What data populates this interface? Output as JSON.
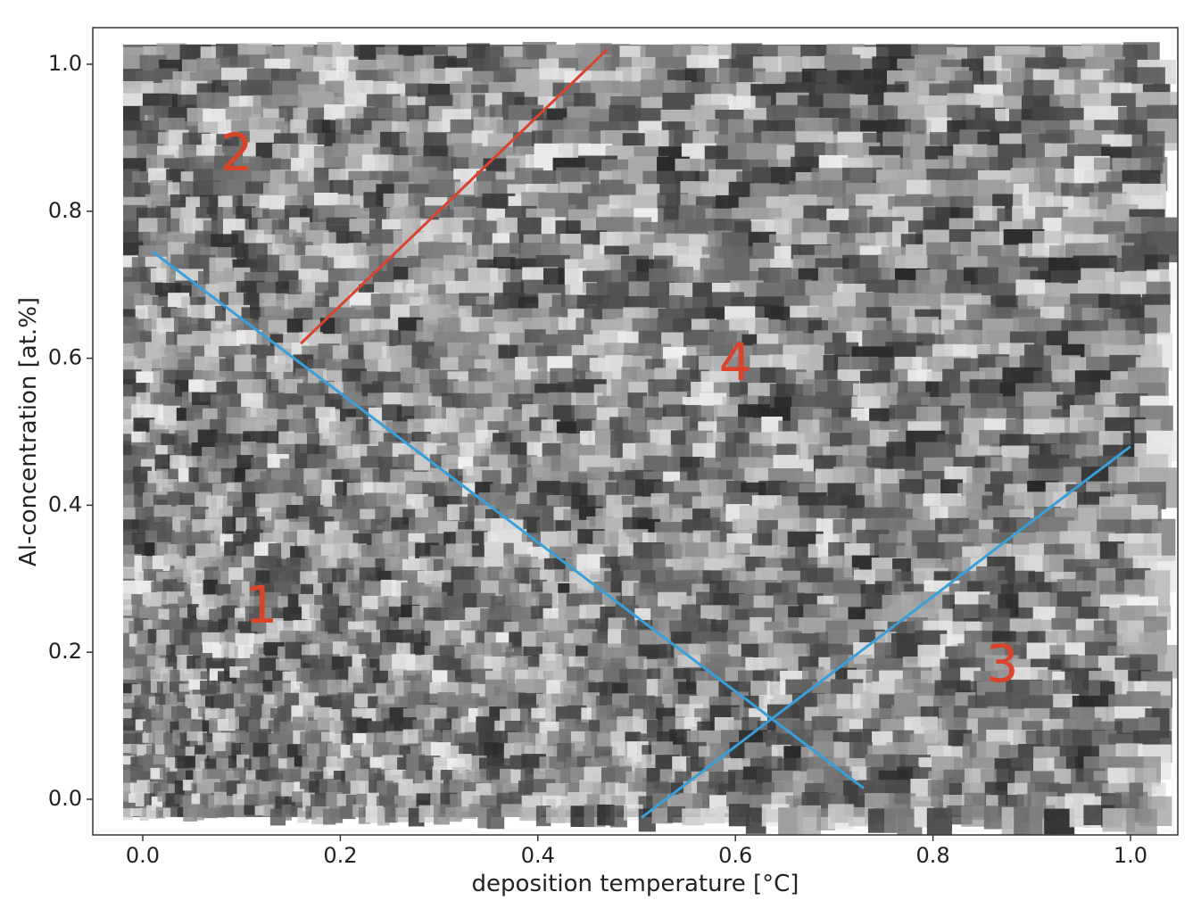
{
  "chart_data": {
    "type": "scatter",
    "title": "",
    "xlabel": "deposition temperature [°C]",
    "ylabel": "Al-concentration [at.%]",
    "xlim": [
      -0.05,
      1.05
    ],
    "ylim": [
      -0.05,
      1.05
    ],
    "xticks": [
      "0.0",
      "0.2",
      "0.4",
      "0.6",
      "0.8",
      "1.0"
    ],
    "yticks": [
      "0.0",
      "0.2",
      "0.4",
      "0.6",
      "0.8",
      "1.0"
    ],
    "grid": false,
    "points_description": "dense mosaic of grayscale microstructure image tiles covering x 0.0–1.0, y 0.0–1.0",
    "lines": [
      {
        "color": "#d9442a",
        "x": [
          0.16,
          0.47
        ],
        "y": [
          0.62,
          1.02
        ]
      },
      {
        "color": "#3a9fd6",
        "x": [
          0.01,
          0.73
        ],
        "y": [
          0.745,
          0.015
        ]
      },
      {
        "color": "#3a9fd6",
        "x": [
          0.505,
          1.0
        ],
        "y": [
          -0.025,
          0.48
        ]
      }
    ],
    "annotations": [
      {
        "text": "1",
        "x": 0.12,
        "y": 0.26,
        "color": "#d9442a"
      },
      {
        "text": "2",
        "x": 0.095,
        "y": 0.875,
        "color": "#d9442a"
      },
      {
        "text": "3",
        "x": 0.87,
        "y": 0.18,
        "color": "#d9442a"
      },
      {
        "text": "4",
        "x": 0.6,
        "y": 0.59,
        "color": "#d9442a"
      }
    ]
  },
  "colors": {
    "region_label": "#d9442a",
    "divider_red": "#d9442a",
    "divider_blue": "#3a9fd6"
  }
}
